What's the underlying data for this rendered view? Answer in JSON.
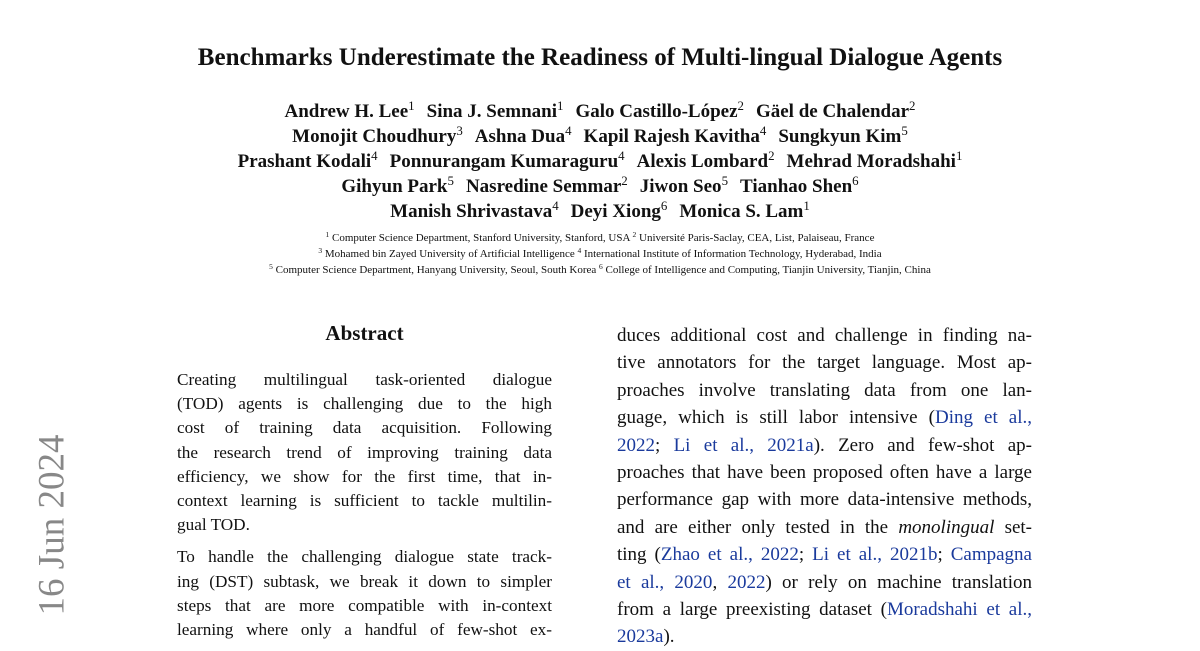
{
  "side_stamp": "16 Jun 2024",
  "title": "Benchmarks Underestimate the Readiness of Multi-lingual Dialogue Agents",
  "author_lines": [
    [
      {
        "name": "Andrew H. Lee",
        "aff": "1"
      },
      {
        "name": "Sina J. Semnani",
        "aff": "1"
      },
      {
        "name": "Galo Castillo-López",
        "aff": "2"
      },
      {
        "name": "Gäel de Chalendar",
        "aff": "2"
      }
    ],
    [
      {
        "name": "Monojit Choudhury",
        "aff": "3"
      },
      {
        "name": "Ashna Dua",
        "aff": "4"
      },
      {
        "name": "Kapil Rajesh Kavitha",
        "aff": "4"
      },
      {
        "name": "Sungkyun Kim",
        "aff": "5"
      }
    ],
    [
      {
        "name": "Prashant Kodali",
        "aff": "4"
      },
      {
        "name": "Ponnurangam Kumaraguru",
        "aff": "4"
      },
      {
        "name": "Alexis Lombard",
        "aff": "2"
      },
      {
        "name": "Mehrad Moradshahi",
        "aff": "1"
      }
    ],
    [
      {
        "name": "Gihyun Park",
        "aff": "5"
      },
      {
        "name": "Nasredine Semmar",
        "aff": "2"
      },
      {
        "name": "Jiwon Seo",
        "aff": "5"
      },
      {
        "name": "Tianhao Shen",
        "aff": "6"
      }
    ],
    [
      {
        "name": "Manish Shrivastava",
        "aff": "4"
      },
      {
        "name": "Deyi Xiong",
        "aff": "6"
      },
      {
        "name": "Monica S. Lam",
        "aff": "1"
      }
    ]
  ],
  "affiliation_lines": [
    [
      {
        "mark": "1",
        "text": "Computer Science Department, Stanford University, Stanford, USA"
      },
      {
        "mark": "2",
        "text": "Université Paris-Saclay, CEA, List, Palaiseau, France"
      }
    ],
    [
      {
        "mark": "3",
        "text": "Mohamed bin Zayed University of Artificial Intelligence"
      },
      {
        "mark": "4",
        "text": "International Institute of Information Technology, Hyderabad, India"
      }
    ],
    [
      {
        "mark": "5",
        "text": "Computer Science Department, Hanyang University, Seoul, South Korea"
      },
      {
        "mark": "6",
        "text": "College of Intelligence and Computing, Tianjin University, Tianjin, China"
      }
    ]
  ],
  "abstract": {
    "heading": "Abstract",
    "paragraphs": [
      [
        "Creating multilingual task-oriented dialogue",
        "(TOD) agents is challenging due to the high",
        "cost of training data acquisition. Following",
        "the research trend of improving training data",
        "efficiency, we show for the first time, that in-",
        "context learning is sufficient to tackle multilin-",
        "gual TOD."
      ],
      [
        "To handle the challenging dialogue state track-",
        "ing (DST) subtask, we break it down to simpler",
        "steps that are more compatible with in-context",
        "learning where only a handful of few-shot ex-"
      ]
    ]
  },
  "right_column": [
    [
      {
        "text": "duces additional cost and challenge in finding na-"
      }
    ],
    [
      {
        "text": "tive annotators for the target language. Most ap-"
      }
    ],
    [
      {
        "text": "proaches involve translating data from one lan-"
      }
    ],
    [
      {
        "text": "guage, which is still labor intensive ("
      },
      {
        "text": "Ding et al.,",
        "style": "cite"
      }
    ],
    [
      {
        "text": "2022",
        "style": "cite"
      },
      {
        "text": "; "
      },
      {
        "text": "Li et al., 2021a",
        "style": "cite"
      },
      {
        "text": "). Zero and few-shot ap-"
      }
    ],
    [
      {
        "text": "proaches that have been proposed often have a large"
      }
    ],
    [
      {
        "text": "performance gap with more data-intensive methods,"
      }
    ],
    [
      {
        "text": "and are either only tested in the "
      },
      {
        "text": "monolingual",
        "style": "em"
      },
      {
        "text": " set-"
      }
    ],
    [
      {
        "text": "ting ("
      },
      {
        "text": "Zhao et al., 2022",
        "style": "cite"
      },
      {
        "text": "; "
      },
      {
        "text": "Li et al., 2021b",
        "style": "cite"
      },
      {
        "text": "; "
      },
      {
        "text": "Campagna",
        "style": "cite"
      }
    ],
    [
      {
        "text": "et al., 2020",
        "style": "cite"
      },
      {
        "text": ", "
      },
      {
        "text": "2022",
        "style": "cite"
      },
      {
        "text": ") or rely on machine translation"
      }
    ],
    [
      {
        "text": "from a large preexisting dataset ("
      },
      {
        "text": "Moradshahi et al.,",
        "style": "cite"
      }
    ],
    [
      {
        "text": "2023a",
        "style": "cite"
      },
      {
        "text": ")."
      }
    ]
  ]
}
